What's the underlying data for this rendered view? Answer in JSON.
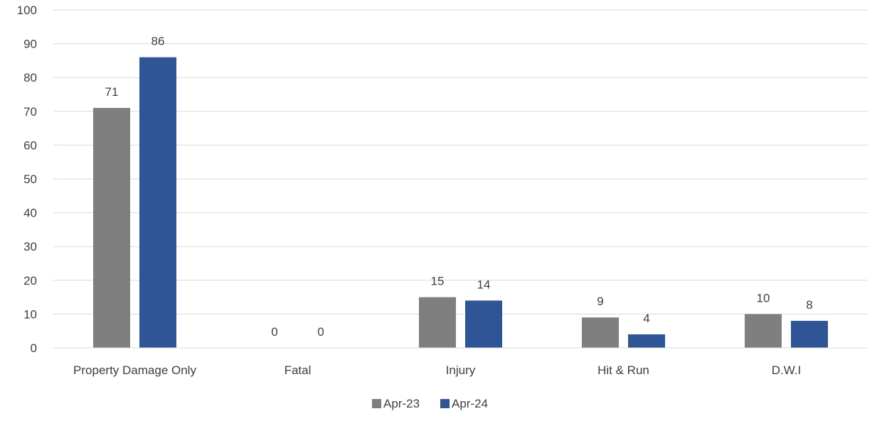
{
  "chart_data": {
    "type": "bar",
    "title": "",
    "xlabel": "",
    "ylabel": "",
    "categories": [
      "Property Damage Only",
      "Fatal",
      "Injury",
      "Hit & Run",
      "D.W.I"
    ],
    "series": [
      {
        "name": "Apr-23",
        "values": [
          71,
          0,
          15,
          9,
          10
        ],
        "color": "#7f7f7f"
      },
      {
        "name": "Apr-24",
        "values": [
          86,
          0,
          14,
          4,
          8
        ],
        "color": "#2f5597"
      }
    ],
    "ylim": [
      0,
      100
    ],
    "yticks": [
      0,
      10,
      20,
      30,
      40,
      50,
      60,
      70,
      80,
      90,
      100
    ],
    "grid": true,
    "gridColor": "#d9d9d9",
    "data_labels": true,
    "legend_position": "bottom"
  }
}
